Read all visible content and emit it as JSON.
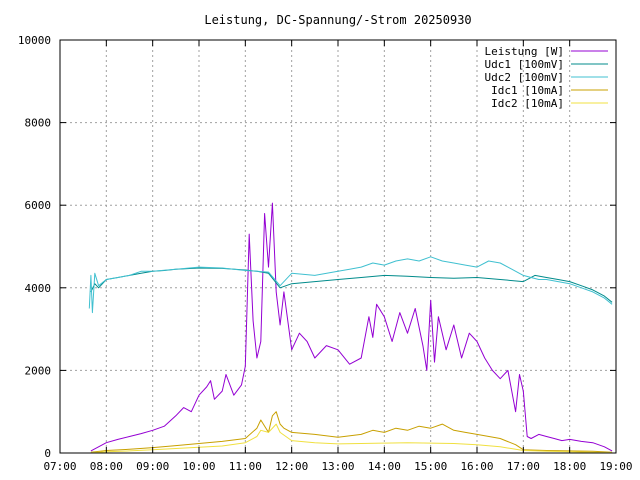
{
  "chart_data": {
    "type": "line",
    "title": "Leistung, DC-Spannung/-Strom 20250930",
    "xlabel": "",
    "ylabel": "",
    "xlim": [
      "07:00",
      "19:00"
    ],
    "ylim": [
      0,
      10000
    ],
    "x_ticks": [
      "07:00",
      "08:00",
      "09:00",
      "10:00",
      "11:00",
      "12:00",
      "13:00",
      "14:00",
      "15:00",
      "16:00",
      "17:00",
      "18:00",
      "19:00"
    ],
    "y_ticks": [
      0,
      2000,
      4000,
      6000,
      8000,
      10000
    ],
    "y_tick_labels": [
      "0",
      "2000",
      "4000",
      "6000",
      "8000",
      "10000"
    ],
    "grid": true,
    "legend_position": "top-right",
    "series": [
      {
        "name": "Leistung [W]",
        "color": "#9400d3",
        "x": [
          "07:40",
          "07:50",
          "08:00",
          "08:15",
          "08:30",
          "08:45",
          "09:00",
          "09:15",
          "09:30",
          "09:40",
          "09:50",
          "10:00",
          "10:10",
          "10:15",
          "10:20",
          "10:30",
          "10:35",
          "10:45",
          "10:55",
          "11:00",
          "11:05",
          "11:10",
          "11:15",
          "11:20",
          "11:25",
          "11:30",
          "11:35",
          "11:40",
          "11:45",
          "11:50",
          "12:00",
          "12:10",
          "12:20",
          "12:30",
          "12:45",
          "13:00",
          "13:15",
          "13:30",
          "13:40",
          "13:45",
          "13:50",
          "14:00",
          "14:10",
          "14:20",
          "14:30",
          "14:40",
          "14:50",
          "14:55",
          "15:00",
          "15:05",
          "15:10",
          "15:20",
          "15:30",
          "15:40",
          "15:50",
          "16:00",
          "16:10",
          "16:20",
          "16:30",
          "16:40",
          "16:50",
          "16:55",
          "17:00",
          "17:05",
          "17:10",
          "17:20",
          "17:30",
          "17:40",
          "17:50",
          "18:00",
          "18:15",
          "18:30",
          "18:45",
          "18:55"
        ],
        "y": [
          50,
          150,
          250,
          330,
          400,
          470,
          550,
          650,
          900,
          1100,
          1000,
          1400,
          1600,
          1750,
          1300,
          1500,
          1900,
          1400,
          1650,
          2100,
          5300,
          3200,
          2300,
          2700,
          5800,
          4500,
          6050,
          3900,
          3100,
          3900,
          2500,
          2900,
          2700,
          2300,
          2600,
          2500,
          2150,
          2300,
          3300,
          2800,
          3600,
          3300,
          2700,
          3400,
          2900,
          3500,
          2600,
          2000,
          3700,
          2200,
          3300,
          2500,
          3100,
          2300,
          2900,
          2700,
          2300,
          2000,
          1800,
          2000,
          1000,
          1900,
          1500,
          400,
          350,
          450,
          400,
          350,
          300,
          330,
          280,
          250,
          150,
          50
        ]
      },
      {
        "name": "Udc1 [100mV]",
        "color": "#008b8b",
        "x": [
          "07:40",
          "07:45",
          "07:50",
          "08:00",
          "08:15",
          "08:30",
          "08:45",
          "09:00",
          "09:15",
          "09:30",
          "10:00",
          "10:30",
          "11:00",
          "11:15",
          "11:30",
          "11:45",
          "12:00",
          "12:30",
          "13:00",
          "13:30",
          "14:00",
          "14:30",
          "15:00",
          "15:30",
          "16:00",
          "16:30",
          "17:00",
          "17:15",
          "17:30",
          "17:45",
          "18:00",
          "18:15",
          "18:30",
          "18:45",
          "18:55"
        ],
        "y": [
          3900,
          4100,
          4000,
          4200,
          4250,
          4300,
          4350,
          4400,
          4420,
          4450,
          4480,
          4470,
          4430,
          4400,
          4350,
          4000,
          4100,
          4150,
          4200,
          4250,
          4300,
          4280,
          4250,
          4230,
          4250,
          4200,
          4150,
          4300,
          4250,
          4200,
          4150,
          4050,
          3950,
          3800,
          3650
        ]
      },
      {
        "name": "Udc2 [100mV]",
        "color": "#40c0d0",
        "x": [
          "07:38",
          "07:40",
          "07:42",
          "07:45",
          "07:50",
          "08:00",
          "08:15",
          "08:30",
          "08:45",
          "09:00",
          "09:30",
          "10:00",
          "10:30",
          "11:00",
          "11:15",
          "11:30",
          "11:45",
          "12:00",
          "12:30",
          "13:00",
          "13:15",
          "13:30",
          "13:45",
          "14:00",
          "14:15",
          "14:30",
          "14:45",
          "15:00",
          "15:15",
          "15:30",
          "15:45",
          "16:00",
          "16:15",
          "16:30",
          "16:45",
          "17:00",
          "17:10",
          "17:20",
          "17:30",
          "17:45",
          "18:00",
          "18:15",
          "18:30",
          "18:45",
          "18:55"
        ],
        "y": [
          3500,
          4300,
          3400,
          4350,
          4050,
          4200,
          4250,
          4300,
          4400,
          4400,
          4450,
          4500,
          4480,
          4420,
          4400,
          4380,
          4050,
          4350,
          4300,
          4400,
          4450,
          4500,
          4600,
          4550,
          4650,
          4700,
          4650,
          4750,
          4650,
          4600,
          4550,
          4500,
          4650,
          4600,
          4450,
          4300,
          4250,
          4200,
          4200,
          4150,
          4100,
          4000,
          3900,
          3750,
          3600
        ]
      },
      {
        "name": "Idc1 [10mA]",
        "color": "#c8a000",
        "x": [
          "07:40",
          "08:00",
          "08:30",
          "09:00",
          "09:30",
          "10:00",
          "10:30",
          "11:00",
          "11:15",
          "11:20",
          "11:30",
          "11:35",
          "11:40",
          "11:45",
          "11:50",
          "12:00",
          "12:30",
          "13:00",
          "13:30",
          "13:45",
          "14:00",
          "14:15",
          "14:30",
          "14:45",
          "15:00",
          "15:15",
          "15:30",
          "15:45",
          "16:00",
          "16:30",
          "16:50",
          "17:00",
          "17:30",
          "18:00",
          "18:30",
          "18:55"
        ],
        "y": [
          20,
          60,
          90,
          130,
          180,
          230,
          280,
          350,
          600,
          800,
          500,
          900,
          1000,
          700,
          600,
          500,
          450,
          380,
          450,
          550,
          500,
          600,
          550,
          650,
          600,
          700,
          550,
          500,
          450,
          350,
          200,
          80,
          60,
          50,
          40,
          20
        ]
      },
      {
        "name": "Idc2 [10mA]",
        "color": "#f0e040",
        "x": [
          "07:40",
          "08:00",
          "08:30",
          "09:00",
          "09:30",
          "10:00",
          "10:30",
          "11:00",
          "11:15",
          "11:20",
          "11:30",
          "11:40",
          "11:45",
          "12:00",
          "12:30",
          "13:00",
          "13:30",
          "14:00",
          "14:30",
          "15:00",
          "15:30",
          "16:00",
          "16:30",
          "17:00",
          "17:30",
          "18:00",
          "18:30",
          "18:55"
        ],
        "y": [
          10,
          30,
          50,
          80,
          110,
          140,
          170,
          250,
          400,
          550,
          500,
          700,
          500,
          300,
          250,
          220,
          230,
          240,
          250,
          240,
          230,
          200,
          150,
          60,
          40,
          30,
          20,
          10
        ]
      }
    ]
  }
}
